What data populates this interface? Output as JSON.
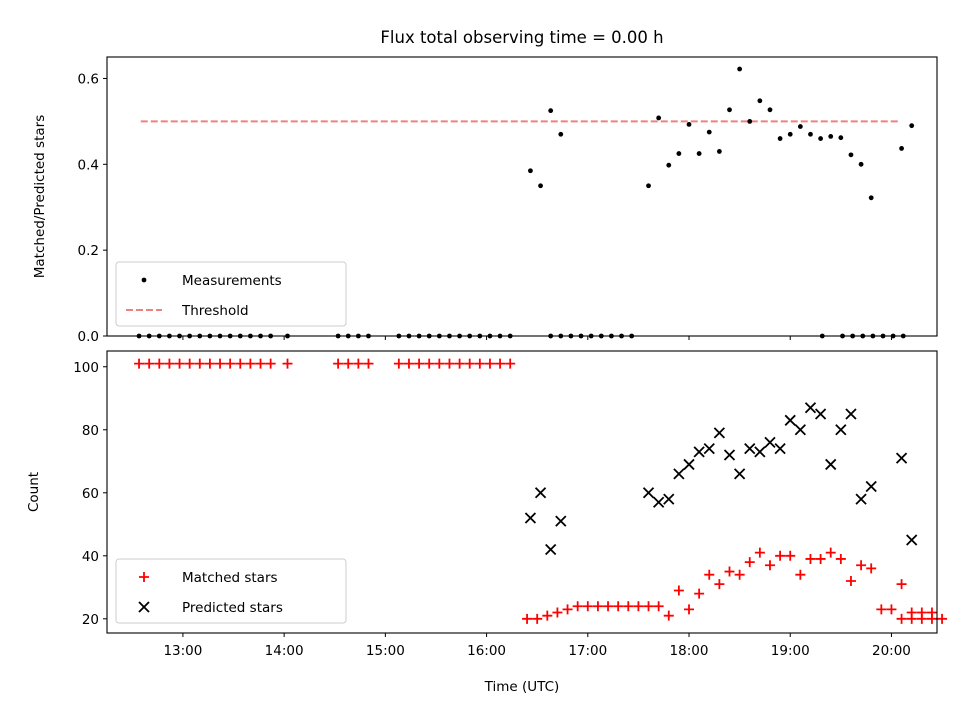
{
  "chart_data": [
    {
      "type": "scatter",
      "title": "Flux total observing time = 0.00 h",
      "ylabel": "Matched/Predicted stars",
      "xlabel": "",
      "xlim": [
        "12:15",
        "20:27"
      ],
      "ylim": [
        0,
        0.65
      ],
      "yticks": [
        "0.0",
        "0.2",
        "0.4",
        "0.6"
      ],
      "xticks": [
        "13:00",
        "14:00",
        "15:00",
        "16:00",
        "17:00",
        "18:00",
        "19:00",
        "20:00"
      ],
      "legend": {
        "position": "lower-left",
        "entries": [
          "Measurements",
          "Threshold"
        ]
      },
      "threshold": {
        "name": "Threshold",
        "value": 0.5,
        "x": [
          "12:35",
          "20:05"
        ],
        "color": "#f08080"
      },
      "series": [
        {
          "name": "Measurements",
          "marker": "dot",
          "color": "#000000",
          "points": [
            [
              "12:34",
              0
            ],
            [
              "12:40",
              0
            ],
            [
              "12:46",
              0
            ],
            [
              "12:52",
              0
            ],
            [
              "12:58",
              0
            ],
            [
              "13:04",
              0
            ],
            [
              "13:10",
              0
            ],
            [
              "13:16",
              0
            ],
            [
              "13:22",
              0
            ],
            [
              "13:28",
              0
            ],
            [
              "13:34",
              0
            ],
            [
              "13:40",
              0
            ],
            [
              "13:46",
              0
            ],
            [
              "13:52",
              0
            ],
            [
              "14:02",
              0
            ],
            [
              "14:32",
              0
            ],
            [
              "14:38",
              0
            ],
            [
              "14:44",
              0
            ],
            [
              "14:50",
              0
            ],
            [
              "15:08",
              0
            ],
            [
              "15:14",
              0
            ],
            [
              "15:20",
              0
            ],
            [
              "15:26",
              0
            ],
            [
              "15:32",
              0
            ],
            [
              "15:38",
              0
            ],
            [
              "15:44",
              0
            ],
            [
              "15:50",
              0
            ],
            [
              "15:56",
              0
            ],
            [
              "16:02",
              0
            ],
            [
              "16:08",
              0
            ],
            [
              "16:14",
              0
            ],
            [
              "16:38",
              0
            ],
            [
              "16:44",
              0
            ],
            [
              "16:50",
              0
            ],
            [
              "16:56",
              0
            ],
            [
              "17:02",
              0
            ],
            [
              "17:08",
              0
            ],
            [
              "17:14",
              0
            ],
            [
              "17:20",
              0
            ],
            [
              "17:26",
              0
            ],
            [
              "19:19",
              0
            ],
            [
              "19:31",
              0
            ],
            [
              "19:37",
              0
            ],
            [
              "19:43",
              0
            ],
            [
              "19:49",
              0
            ],
            [
              "19:55",
              0
            ],
            [
              "20:01",
              0
            ],
            [
              "20:07",
              0
            ],
            [
              "16:26",
              0.385
            ],
            [
              "16:32",
              0.35
            ],
            [
              "16:38",
              0.525
            ],
            [
              "16:44",
              0.47
            ],
            [
              "17:36",
              0.35
            ],
            [
              "17:42",
              0.508
            ],
            [
              "17:48",
              0.398
            ],
            [
              "17:54",
              0.425
            ],
            [
              "18:00",
              0.493
            ],
            [
              "18:06",
              0.425
            ],
            [
              "18:12",
              0.475
            ],
            [
              "18:18",
              0.43
            ],
            [
              "18:24",
              0.527
            ],
            [
              "18:30",
              0.622
            ],
            [
              "18:36",
              0.5
            ],
            [
              "18:42",
              0.548
            ],
            [
              "18:48",
              0.527
            ],
            [
              "18:54",
              0.46
            ],
            [
              "19:00",
              0.47
            ],
            [
              "19:06",
              0.488
            ],
            [
              "19:12",
              0.47
            ],
            [
              "19:18",
              0.46
            ],
            [
              "19:24",
              0.465
            ],
            [
              "19:30",
              0.462
            ],
            [
              "19:36",
              0.422
            ],
            [
              "19:42",
              0.4
            ],
            [
              "19:48",
              0.322
            ],
            [
              "20:06",
              0.437
            ],
            [
              "20:12",
              0.49
            ]
          ]
        }
      ]
    },
    {
      "type": "scatter",
      "title": "",
      "ylabel": "Count",
      "xlabel": "Time (UTC)",
      "xlim": [
        "12:15",
        "20:27"
      ],
      "ylim": [
        15.5,
        105
      ],
      "yticks": [
        "20",
        "40",
        "60",
        "80",
        "100"
      ],
      "xticks": [
        "13:00",
        "14:00",
        "15:00",
        "16:00",
        "17:00",
        "18:00",
        "19:00",
        "20:00"
      ],
      "legend": {
        "position": "lower-left",
        "entries": [
          "Matched stars",
          "Predicted stars"
        ]
      },
      "series": [
        {
          "name": "Matched stars",
          "marker": "plus",
          "color": "#ff0000",
          "points": [
            [
              "12:34",
              101
            ],
            [
              "12:40",
              101
            ],
            [
              "12:46",
              101
            ],
            [
              "12:52",
              101
            ],
            [
              "12:58",
              101
            ],
            [
              "13:04",
              101
            ],
            [
              "13:10",
              101
            ],
            [
              "13:16",
              101
            ],
            [
              "13:22",
              101
            ],
            [
              "13:28",
              101
            ],
            [
              "13:34",
              101
            ],
            [
              "13:40",
              101
            ],
            [
              "13:46",
              101
            ],
            [
              "13:52",
              101
            ],
            [
              "14:02",
              101
            ],
            [
              "14:32",
              101
            ],
            [
              "14:38",
              101
            ],
            [
              "14:44",
              101
            ],
            [
              "14:50",
              101
            ],
            [
              "15:08",
              101
            ],
            [
              "15:14",
              101
            ],
            [
              "15:20",
              101
            ],
            [
              "15:26",
              101
            ],
            [
              "15:32",
              101
            ],
            [
              "15:38",
              101
            ],
            [
              "15:44",
              101
            ],
            [
              "15:50",
              101
            ],
            [
              "15:56",
              101
            ],
            [
              "16:02",
              101
            ],
            [
              "16:08",
              101
            ],
            [
              "16:14",
              101
            ],
            [
              "16:24",
              20
            ],
            [
              "16:30",
              20
            ],
            [
              "16:36",
              21
            ],
            [
              "16:42",
              22
            ],
            [
              "16:48",
              23
            ],
            [
              "16:54",
              24
            ],
            [
              "17:00",
              24
            ],
            [
              "17:06",
              24
            ],
            [
              "17:12",
              24
            ],
            [
              "17:18",
              24
            ],
            [
              "17:24",
              24
            ],
            [
              "17:30",
              24
            ],
            [
              "17:36",
              24
            ],
            [
              "17:42",
              24
            ],
            [
              "17:48",
              21
            ],
            [
              "17:54",
              29
            ],
            [
              "18:00",
              23
            ],
            [
              "18:06",
              28
            ],
            [
              "18:12",
              34
            ],
            [
              "18:18",
              31
            ],
            [
              "18:24",
              35
            ],
            [
              "18:30",
              34
            ],
            [
              "18:36",
              38
            ],
            [
              "18:42",
              41
            ],
            [
              "18:48",
              37
            ],
            [
              "18:54",
              40
            ],
            [
              "19:00",
              40
            ],
            [
              "19:06",
              34
            ],
            [
              "19:12",
              39
            ],
            [
              "19:18",
              39
            ],
            [
              "19:24",
              41
            ],
            [
              "19:30",
              39
            ],
            [
              "19:36",
              32
            ],
            [
              "19:42",
              37
            ],
            [
              "19:48",
              36
            ],
            [
              "19:54",
              23
            ],
            [
              "20:00",
              23
            ],
            [
              "20:06",
              20
            ],
            [
              "20:12",
              20
            ],
            [
              "20:18",
              20
            ],
            [
              "20:24",
              20
            ],
            [
              "20:30",
              20
            ],
            [
              "20:06",
              31
            ],
            [
              "20:12",
              22
            ],
            [
              "20:18",
              22
            ],
            [
              "20:24",
              22
            ]
          ]
        },
        {
          "name": "Predicted stars",
          "marker": "x",
          "color": "#000000",
          "points": [
            [
              "16:26",
              52
            ],
            [
              "16:32",
              60
            ],
            [
              "16:38",
              42
            ],
            [
              "16:44",
              51
            ],
            [
              "17:36",
              60
            ],
            [
              "17:42",
              57
            ],
            [
              "17:48",
              58
            ],
            [
              "17:54",
              66
            ],
            [
              "18:00",
              69
            ],
            [
              "18:06",
              73
            ],
            [
              "18:12",
              74
            ],
            [
              "18:18",
              79
            ],
            [
              "18:24",
              72
            ],
            [
              "18:30",
              66
            ],
            [
              "18:36",
              74
            ],
            [
              "18:42",
              73
            ],
            [
              "18:48",
              76
            ],
            [
              "18:54",
              74
            ],
            [
              "19:00",
              83
            ],
            [
              "19:06",
              80
            ],
            [
              "19:12",
              87
            ],
            [
              "19:18",
              85
            ],
            [
              "19:24",
              69
            ],
            [
              "19:30",
              80
            ],
            [
              "19:36",
              85
            ],
            [
              "19:42",
              58
            ],
            [
              "19:48",
              62
            ],
            [
              "20:06",
              71
            ],
            [
              "20:12",
              45
            ]
          ]
        }
      ]
    }
  ]
}
